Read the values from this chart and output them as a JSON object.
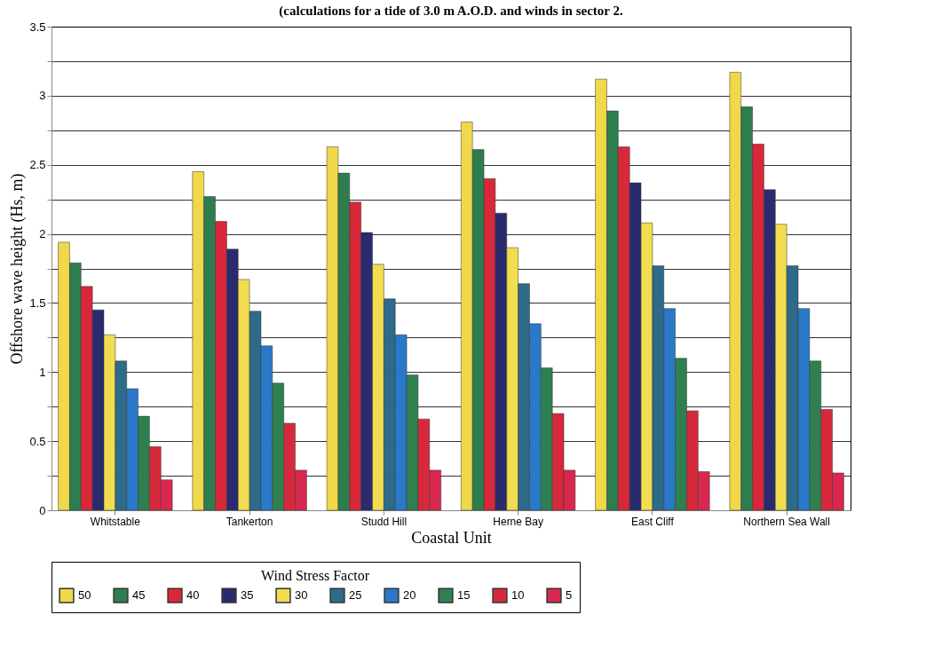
{
  "chart_data": {
    "type": "bar",
    "title": "(calculations for a tide of 3.0 m A.O.D. and winds in sector 2.",
    "xlabel": "Coastal Unit",
    "ylabel": "Offshore wave height (Hs, m)",
    "legend_title": "Wind Stress Factor",
    "legend": "bottom",
    "grid": "y",
    "categories": [
      "Whitstable",
      "Tankerton",
      "Studd Hill",
      "Herne Bay",
      "East Cliff",
      "Northern Sea Wall"
    ],
    "ylim": [
      0,
      3.5
    ],
    "yticks": [
      0,
      {
        "value": 0.25,
        "label": null
      },
      0.5,
      {
        "value": 0.75,
        "label": null
      },
      1,
      {
        "value": 1.25,
        "label": null
      },
      1.5,
      {
        "value": 1.75,
        "label": null
      },
      2,
      {
        "value": 2.25,
        "label": null
      },
      2.5,
      {
        "value": 2.75,
        "label": null
      },
      3,
      {
        "value": 3.25,
        "label": null
      },
      3.5
    ],
    "series": [
      {
        "name": "50",
        "color": "#f0d84a",
        "values": [
          1.94,
          2.45,
          2.63,
          2.81,
          3.12,
          3.17
        ]
      },
      {
        "name": "45",
        "color": "#2e7d4f",
        "values": [
          1.79,
          2.27,
          2.44,
          2.61,
          2.89,
          2.92
        ]
      },
      {
        "name": "40",
        "color": "#d8283a",
        "values": [
          1.62,
          2.09,
          2.23,
          2.4,
          2.63,
          2.65
        ]
      },
      {
        "name": "35",
        "color": "#2a2a6e",
        "values": [
          1.45,
          1.89,
          2.01,
          2.15,
          2.37,
          2.32
        ]
      },
      {
        "name": "30",
        "color": "#f2dc50",
        "values": [
          1.27,
          1.67,
          1.78,
          1.9,
          2.08,
          2.07
        ]
      },
      {
        "name": "25",
        "color": "#2e6a8a",
        "values": [
          1.08,
          1.44,
          1.53,
          1.64,
          1.77,
          1.77
        ]
      },
      {
        "name": "20",
        "color": "#2a78c8",
        "values": [
          0.88,
          1.19,
          1.27,
          1.35,
          1.46,
          1.46
        ]
      },
      {
        "name": "15",
        "color": "#2f8050",
        "values": [
          0.68,
          0.92,
          0.98,
          1.03,
          1.1,
          1.08
        ]
      },
      {
        "name": "10",
        "color": "#d62a3c",
        "values": [
          0.46,
          0.63,
          0.66,
          0.7,
          0.72,
          0.73
        ]
      },
      {
        "name": "5",
        "color": "#d82850",
        "values": [
          0.22,
          0.29,
          0.29,
          0.29,
          0.28,
          0.27
        ]
      }
    ]
  }
}
